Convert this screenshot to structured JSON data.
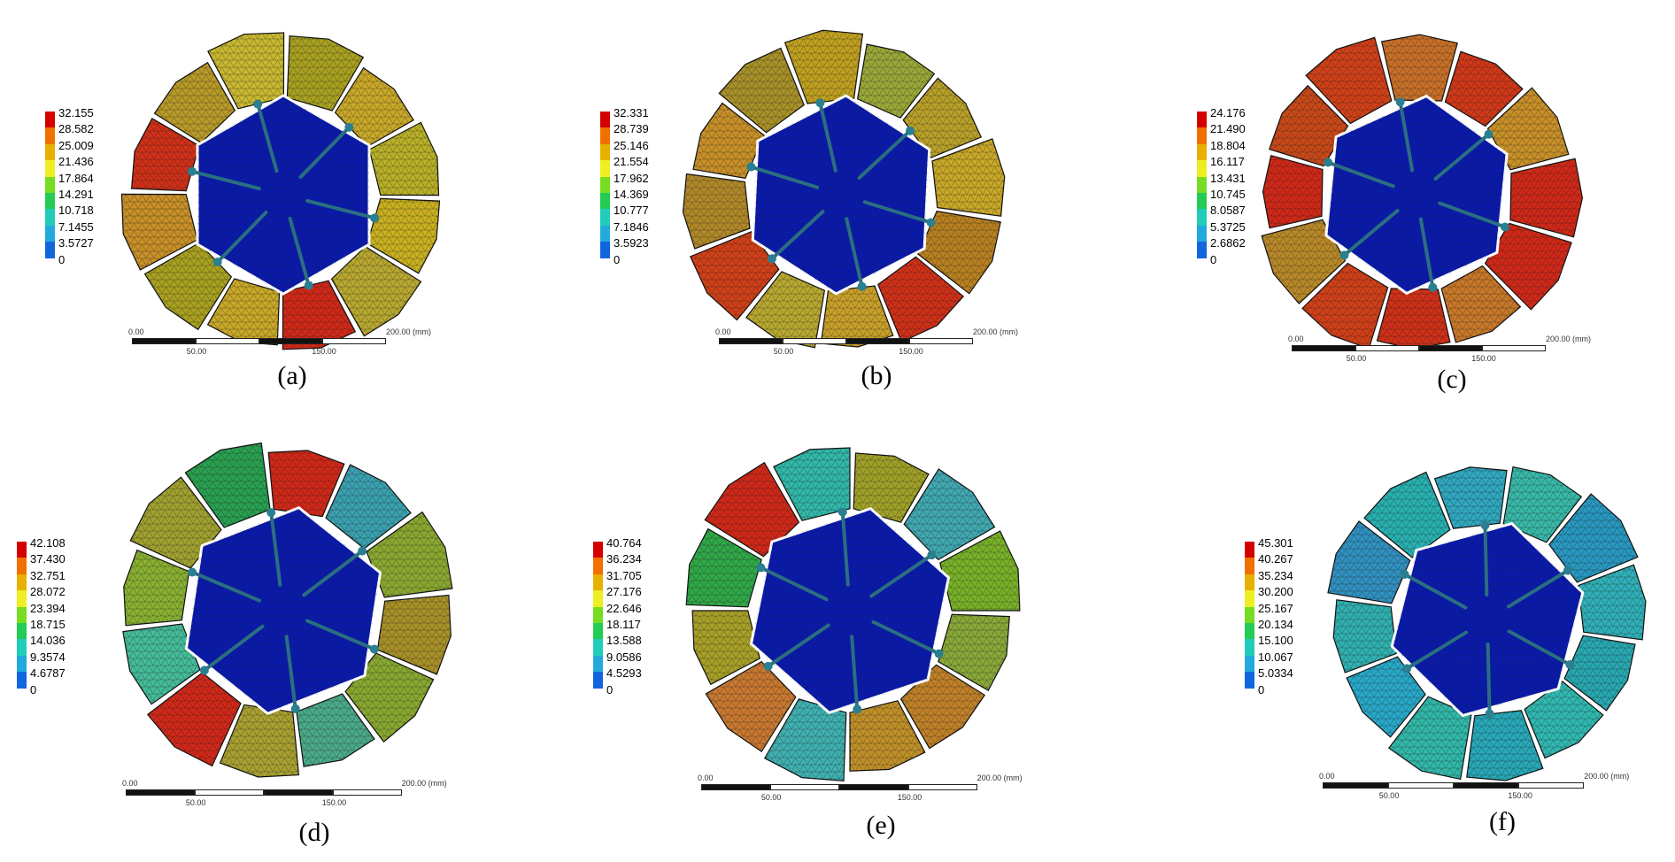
{
  "colors": {
    "legend": [
      "#d40000",
      "#f07000",
      "#e8b000",
      "#eeee22",
      "#77dd22",
      "#22cc55",
      "#22ccbb",
      "#22aadd",
      "#1166dd",
      "#0000cc"
    ],
    "core": "#0a1aa8",
    "mesh": "#1a1a1a"
  },
  "scale_bar": {
    "start": "0.00",
    "end": "200.00",
    "unit": "(mm)",
    "t50": "50.00",
    "t150": "150.00",
    "d_mid": "100.00"
  },
  "panels": [
    {
      "caption": "(a)",
      "legend": [
        "32.155",
        "28.582",
        "25.009",
        "21.436",
        "17.864",
        "14.291",
        "10.718",
        "7.1455",
        "3.5727",
        "0"
      ],
      "block_colors": [
        "#c8b020",
        "#b8a830",
        "#d02818",
        "#c8a828",
        "#a8a020",
        "#c89028",
        "#d03018",
        "#b89a28",
        "#c8b830",
        "#a8a020",
        "#c8a828",
        "#b8b028"
      ]
    },
    {
      "caption": "(b)",
      "legend": [
        "32.331",
        "28.739",
        "25.146",
        "21.554",
        "17.962",
        "14.369",
        "10.777",
        "7.1846",
        "3.5923",
        "0"
      ],
      "block_colors": [
        "#b88020",
        "#d03018",
        "#c8a028",
        "#b8a830",
        "#d04018",
        "#b08828",
        "#c89028",
        "#a89028",
        "#c0a020",
        "#9aa838",
        "#b8a028",
        "#c8a828"
      ]
    },
    {
      "caption": "(c)",
      "legend": [
        "24.176",
        "21.490",
        "18.804",
        "16.117",
        "13.431",
        "10.745",
        "8.0587",
        "5.3725",
        "2.6862",
        "0"
      ],
      "block_colors": [
        "#d02818",
        "#c87828",
        "#d03018",
        "#d04018",
        "#b88828",
        "#d02818",
        "#c84818",
        "#d04018",
        "#c87028",
        "#d03818",
        "#c89028",
        "#d02818"
      ]
    },
    {
      "caption": "(d)",
      "legend": [
        "42.108",
        "37.430",
        "32.751",
        "28.072",
        "23.394",
        "18.715",
        "14.036",
        "9.3574",
        "4.6787",
        "0"
      ],
      "block_colors": [
        "#88a830",
        "#4aaa88",
        "#a8a030",
        "#d02818",
        "#44bb99",
        "#88b030",
        "#a0a030",
        "#28a050",
        "#d02818",
        "#3aa0b0",
        "#8aa830",
        "#a89028"
      ]
    },
    {
      "caption": "(e)",
      "legend": [
        "40.764",
        "36.234",
        "31.705",
        "27.176",
        "22.646",
        "18.117",
        "13.588",
        "9.0586",
        "4.5293",
        "0"
      ],
      "block_colors": [
        "#c08028",
        "#c09028",
        "#40b0b0",
        "#c87830",
        "#a8a028",
        "#30a848",
        "#d02818",
        "#30b8a8",
        "#a0a028",
        "#40a8b0",
        "#78b028",
        "#88a838"
      ]
    },
    {
      "caption": "(f)",
      "legend": [
        "45.301",
        "40.267",
        "35.234",
        "30.200",
        "25.167",
        "20.134",
        "15.100",
        "10.067",
        "5.0334",
        "0"
      ],
      "block_colors": [
        "#30b8b0",
        "#28a8b8",
        "#30b8a8",
        "#28a8c8",
        "#30b0b0",
        "#3090c0",
        "#28b0b0",
        "#30a8c0",
        "#38b8a8",
        "#2898c0",
        "#30b0b8",
        "#28a8b0"
      ]
    }
  ]
}
